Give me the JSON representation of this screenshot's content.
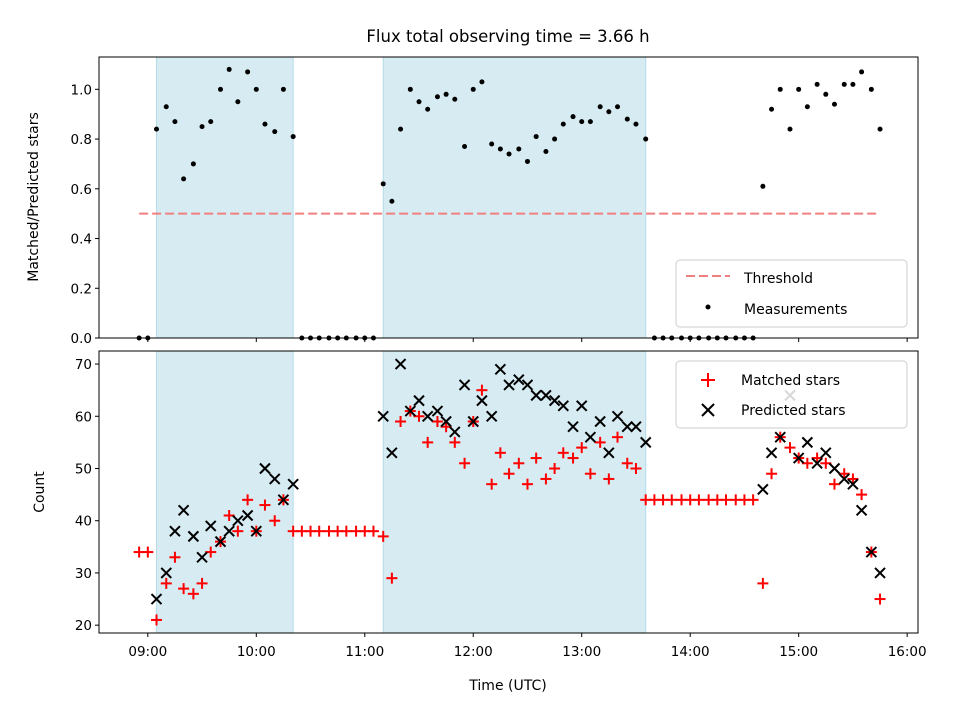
{
  "chart_data": {
    "type": "scatter",
    "title": "Flux total observing time = 3.66 h",
    "xlabel": "Time (UTC)",
    "x_ticks": [
      "09:00",
      "10:00",
      "11:00",
      "12:00",
      "13:00",
      "14:00",
      "15:00",
      "16:00"
    ],
    "xlim": [
      8.55,
      16.1
    ],
    "shaded_intervals": [
      [
        9.08,
        10.34
      ],
      [
        11.17,
        13.59
      ]
    ],
    "shade_color": "#add8e6",
    "panels": [
      {
        "ylabel": "Matched/Predicted stars",
        "ylim": [
          0,
          1.13
        ],
        "y_ticks": [
          0.0,
          0.2,
          0.4,
          0.6,
          0.8,
          1.0
        ],
        "y_tick_labels": [
          "0.0",
          "0.2",
          "0.4",
          "0.6",
          "0.8",
          "1.0"
        ],
        "legend": {
          "position": "lower right",
          "entries": [
            "Threshold",
            "Measurements"
          ]
        },
        "threshold": {
          "name": "Threshold",
          "value": 0.5,
          "x_range": [
            8.92,
            15.75
          ],
          "color": "#f08080"
        },
        "measurements": {
          "name": "Measurements",
          "color": "#000000",
          "x": [
            8.92,
            9.0,
            9.08,
            9.17,
            9.25,
            9.33,
            9.42,
            9.5,
            9.58,
            9.67,
            9.75,
            9.83,
            9.92,
            10.0,
            10.08,
            10.17,
            10.25,
            10.34,
            10.42,
            10.5,
            10.58,
            10.67,
            10.75,
            10.83,
            10.92,
            11.0,
            11.08,
            11.17,
            11.25,
            11.33,
            11.42,
            11.5,
            11.58,
            11.67,
            11.75,
            11.83,
            11.92,
            12.0,
            12.08,
            12.17,
            12.25,
            12.33,
            12.42,
            12.5,
            12.58,
            12.67,
            12.75,
            12.83,
            12.92,
            13.0,
            13.08,
            13.17,
            13.25,
            13.33,
            13.42,
            13.5,
            13.59,
            13.67,
            13.75,
            13.83,
            13.92,
            14.0,
            14.08,
            14.17,
            14.25,
            14.33,
            14.42,
            14.5,
            14.58,
            14.67,
            14.75,
            14.83,
            14.92,
            15.0,
            15.08,
            15.17,
            15.25,
            15.33,
            15.42,
            15.5,
            15.58,
            15.67,
            15.75
          ],
          "y": [
            0.0,
            0.0,
            0.84,
            0.93,
            0.87,
            0.64,
            0.7,
            0.85,
            0.87,
            1.0,
            1.08,
            0.95,
            1.07,
            1.0,
            0.86,
            0.83,
            1.0,
            0.81,
            0.0,
            0.0,
            0.0,
            0.0,
            0.0,
            0.0,
            0.0,
            0.0,
            0.0,
            0.62,
            0.55,
            0.84,
            1.0,
            0.95,
            0.92,
            0.97,
            0.98,
            0.96,
            0.77,
            1.0,
            1.03,
            0.78,
            0.76,
            0.74,
            0.76,
            0.71,
            0.81,
            0.75,
            0.8,
            0.86,
            0.89,
            0.87,
            0.87,
            0.93,
            0.91,
            0.93,
            0.88,
            0.86,
            0.8,
            0.0,
            0.0,
            0.0,
            0.0,
            0.0,
            0.0,
            0.0,
            0.0,
            0.0,
            0.0,
            0.0,
            0.0,
            0.61,
            0.92,
            1.0,
            0.84,
            1.0,
            0.93,
            1.02,
            0.98,
            0.94,
            1.02,
            1.02,
            1.07,
            1.0,
            0.84
          ]
        }
      },
      {
        "ylabel": "Count",
        "ylim": [
          18.5,
          72.5
        ],
        "y_ticks": [
          20,
          30,
          40,
          50,
          60,
          70
        ],
        "y_tick_labels": [
          "20",
          "30",
          "40",
          "50",
          "60",
          "70"
        ],
        "legend": {
          "position": "upper right",
          "entries": [
            "Matched stars",
            "Predicted stars"
          ]
        },
        "series": [
          {
            "name": "Matched stars",
            "marker": "+",
            "color": "#ff0000",
            "x": [
              8.92,
              9.0,
              9.08,
              9.17,
              9.25,
              9.33,
              9.42,
              9.5,
              9.58,
              9.67,
              9.75,
              9.83,
              9.92,
              10.0,
              10.08,
              10.17,
              10.25,
              10.34,
              10.42,
              10.5,
              10.58,
              10.67,
              10.75,
              10.83,
              10.92,
              11.0,
              11.08,
              11.17,
              11.25,
              11.33,
              11.42,
              11.5,
              11.58,
              11.67,
              11.75,
              11.83,
              11.92,
              12.0,
              12.08,
              12.17,
              12.25,
              12.33,
              12.42,
              12.5,
              12.58,
              12.67,
              12.75,
              12.83,
              12.92,
              13.0,
              13.08,
              13.17,
              13.25,
              13.33,
              13.42,
              13.5,
              13.59,
              13.67,
              13.75,
              13.83,
              13.92,
              14.0,
              14.08,
              14.17,
              14.25,
              14.33,
              14.42,
              14.5,
              14.58,
              14.67,
              14.75,
              14.83,
              14.92,
              15.0,
              15.08,
              15.17,
              15.25,
              15.33,
              15.42,
              15.5,
              15.58,
              15.67,
              15.75
            ],
            "y": [
              34,
              34,
              21,
              28,
              33,
              27,
              26,
              28,
              34,
              36,
              41,
              38,
              44,
              38,
              43,
              40,
              44,
              38,
              38,
              38,
              38,
              38,
              38,
              38,
              38,
              38,
              38,
              37,
              29,
              59,
              61,
              60,
              55,
              59,
              58,
              55,
              51,
              59,
              65,
              47,
              53,
              49,
              51,
              47,
              52,
              48,
              50,
              53,
              52,
              54,
              49,
              55,
              48,
              56,
              51,
              50,
              44,
              44,
              44,
              44,
              44,
              44,
              44,
              44,
              44,
              44,
              44,
              44,
              44,
              28,
              49,
              56,
              54,
              52,
              51,
              52,
              51,
              47,
              49,
              48,
              45,
              34,
              25
            ]
          },
          {
            "name": "Predicted stars",
            "marker": "x",
            "color": "#000000",
            "x": [
              9.08,
              9.17,
              9.25,
              9.33,
              9.42,
              9.5,
              9.58,
              9.67,
              9.75,
              9.83,
              9.92,
              10.0,
              10.08,
              10.17,
              10.25,
              10.34,
              11.17,
              11.25,
              11.33,
              11.42,
              11.5,
              11.58,
              11.67,
              11.75,
              11.83,
              11.92,
              12.0,
              12.08,
              12.17,
              12.25,
              12.33,
              12.42,
              12.5,
              12.58,
              12.67,
              12.75,
              12.83,
              12.92,
              13.0,
              13.08,
              13.17,
              13.25,
              13.33,
              13.42,
              13.5,
              13.59,
              14.67,
              14.75,
              14.83,
              14.92,
              15.0,
              15.08,
              15.17,
              15.25,
              15.33,
              15.42,
              15.5,
              15.58,
              15.67,
              15.75
            ],
            "y": [
              25,
              30,
              38,
              42,
              37,
              33,
              39,
              36,
              38,
              40,
              41,
              38,
              50,
              48,
              44,
              47,
              60,
              53,
              70,
              61,
              63,
              60,
              61,
              59,
              57,
              66,
              59,
              63,
              60,
              69,
              66,
              67,
              66,
              64,
              64,
              63,
              62,
              58,
              62,
              56,
              59,
              53,
              60,
              58,
              58,
              55,
              46,
              53,
              56,
              64,
              52,
              55,
              51,
              53,
              50,
              48,
              47,
              42,
              34,
              30
            ]
          }
        ]
      }
    ]
  }
}
